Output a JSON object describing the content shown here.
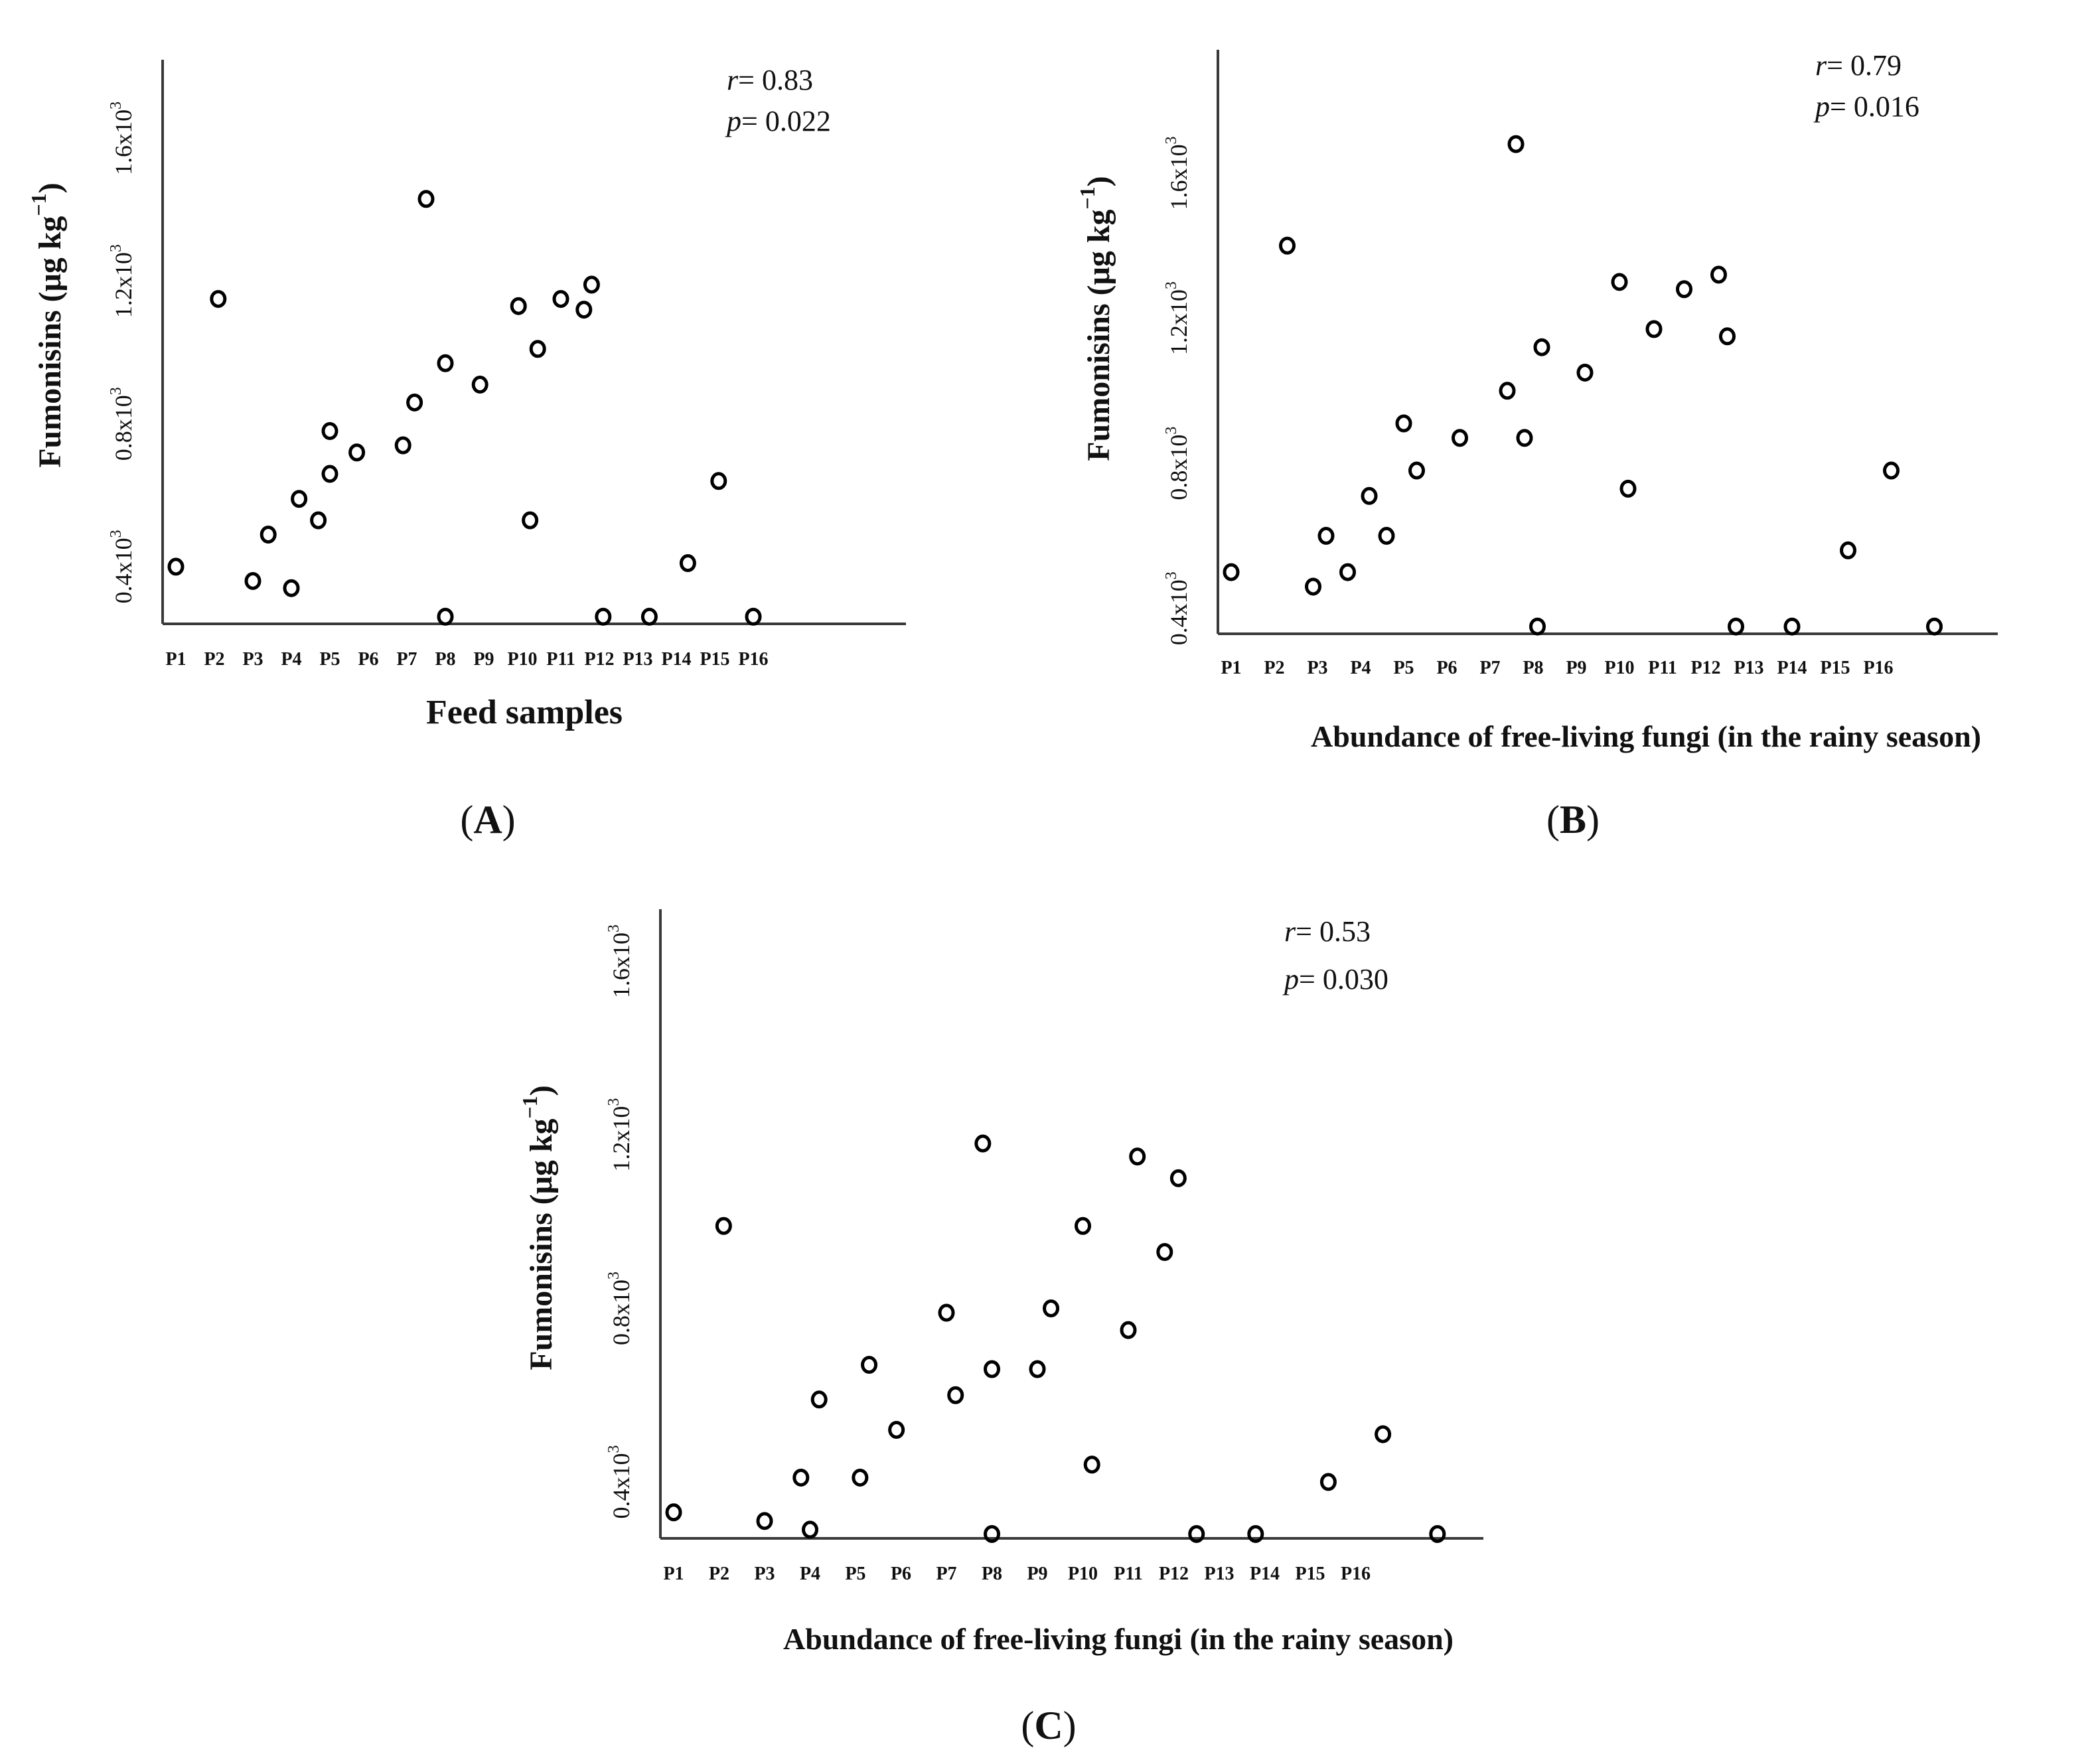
{
  "colors": {
    "ink": "#111111",
    "axis": "#3a3a3a",
    "marker": "#000000",
    "background": "#ffffff"
  },
  "chart_data": [
    {
      "type": "scatter",
      "panel_label": "A",
      "title": "",
      "xlabel": "Feed samples",
      "ylabel_main": "Fumonisins (μg kg",
      "ylabel_sup": "−1",
      "ylabel_close": ")",
      "categories": [
        "P1",
        "P2",
        "P3",
        "P4",
        "P5",
        "P6",
        "P7",
        "P8",
        "P9",
        "P10",
        "P11",
        "P12",
        "P13",
        "P14",
        "P15",
        "P16"
      ],
      "yticks": [
        {
          "base": "0.4x10",
          "exp": "3",
          "value": 0.4
        },
        {
          "base": "0.8x10",
          "exp": "3",
          "value": 0.8
        },
        {
          "base": "1.2x10",
          "exp": "3",
          "value": 1.2
        },
        {
          "base": "1.6x10",
          "exp": "3",
          "value": 1.6
        }
      ],
      "ylim": [
        0.24,
        1.82
      ],
      "y_units": "x10^3 μg kg^-1",
      "stats": {
        "r_symbol": "r",
        "r_value": "= 0.83",
        "p_symbol": "p",
        "p_value": "= 0.022"
      },
      "points": [
        {
          "x": 1.0,
          "y": 0.4
        },
        {
          "x": 2.1,
          "y": 1.15
        },
        {
          "x": 3.0,
          "y": 0.36
        },
        {
          "x": 3.4,
          "y": 0.49
        },
        {
          "x": 4.0,
          "y": 0.34
        },
        {
          "x": 4.2,
          "y": 0.59
        },
        {
          "x": 4.7,
          "y": 0.53
        },
        {
          "x": 5.0,
          "y": 0.66
        },
        {
          "x": 5.0,
          "y": 0.78
        },
        {
          "x": 5.7,
          "y": 0.72
        },
        {
          "x": 6.9,
          "y": 0.74
        },
        {
          "x": 7.2,
          "y": 0.86
        },
        {
          "x": 7.5,
          "y": 1.43
        },
        {
          "x": 8.0,
          "y": 0.26
        },
        {
          "x": 8.0,
          "y": 0.97
        },
        {
          "x": 8.9,
          "y": 0.91
        },
        {
          "x": 9.9,
          "y": 1.13
        },
        {
          "x": 10.2,
          "y": 0.53
        },
        {
          "x": 10.4,
          "y": 1.01
        },
        {
          "x": 11.0,
          "y": 1.15
        },
        {
          "x": 11.6,
          "y": 1.12
        },
        {
          "x": 11.8,
          "y": 1.19
        },
        {
          "x": 12.1,
          "y": 0.26
        },
        {
          "x": 13.3,
          "y": 0.26
        },
        {
          "x": 14.3,
          "y": 0.41
        },
        {
          "x": 15.1,
          "y": 0.64
        },
        {
          "x": 16.0,
          "y": 0.26
        }
      ]
    },
    {
      "type": "scatter",
      "panel_label": "B",
      "title": "",
      "xlabel": "Abundance of free-living fungi (in the rainy season)",
      "ylabel_main": "Fumonisins (μg kg",
      "ylabel_sup": "−1",
      "ylabel_close": ")",
      "categories": [
        "P1",
        "P2",
        "P3",
        "P4",
        "P5",
        "P6",
        "P7",
        "P8",
        "P9",
        "P10",
        "P11",
        "P12",
        "P13",
        "P14",
        "P15",
        "P16"
      ],
      "yticks": [
        {
          "base": "0.4x10",
          "exp": "3",
          "value": 0.4
        },
        {
          "base": "0.8x10",
          "exp": "3",
          "value": 0.8
        },
        {
          "base": "1.2x10",
          "exp": "3",
          "value": 1.2
        },
        {
          "base": "1.6x10",
          "exp": "3",
          "value": 1.6
        }
      ],
      "ylim": [
        0.33,
        1.94
      ],
      "y_units": "x10^3 μg kg^-1",
      "stats": {
        "r_symbol": "r",
        "r_value": "= 0.79",
        "p_symbol": "p",
        "p_value": "= 0.016"
      },
      "points": [
        {
          "x": 1.0,
          "y": 0.5
        },
        {
          "x": 2.3,
          "y": 1.4
        },
        {
          "x": 2.9,
          "y": 0.46
        },
        {
          "x": 3.2,
          "y": 0.6
        },
        {
          "x": 3.7,
          "y": 0.5
        },
        {
          "x": 4.2,
          "y": 0.71
        },
        {
          "x": 4.6,
          "y": 0.6
        },
        {
          "x": 5.0,
          "y": 0.91
        },
        {
          "x": 5.3,
          "y": 0.78
        },
        {
          "x": 6.3,
          "y": 0.87
        },
        {
          "x": 7.4,
          "y": 1.0
        },
        {
          "x": 7.6,
          "y": 1.68
        },
        {
          "x": 7.8,
          "y": 0.87
        },
        {
          "x": 8.1,
          "y": 0.35
        },
        {
          "x": 8.2,
          "y": 1.12
        },
        {
          "x": 9.2,
          "y": 1.05
        },
        {
          "x": 10.0,
          "y": 1.3
        },
        {
          "x": 10.2,
          "y": 0.73
        },
        {
          "x": 10.8,
          "y": 1.17
        },
        {
          "x": 11.5,
          "y": 1.28
        },
        {
          "x": 12.3,
          "y": 1.32
        },
        {
          "x": 12.5,
          "y": 1.15
        },
        {
          "x": 12.7,
          "y": 0.35
        },
        {
          "x": 14.0,
          "y": 0.35
        },
        {
          "x": 15.3,
          "y": 0.56
        },
        {
          "x": 16.3,
          "y": 0.78
        },
        {
          "x": 17.3,
          "y": 0.35
        }
      ]
    },
    {
      "type": "scatter",
      "panel_label": "C",
      "title": "",
      "xlabel": "Abundance of free-living fungi (in the rainy season)",
      "ylabel_main": "Fumonisins (μg kg",
      "ylabel_sup": "−1",
      "ylabel_close": ")",
      "categories": [
        "P1",
        "P2",
        "P3",
        "P4",
        "P5",
        "P6",
        "P7",
        "P8",
        "P9",
        "P10",
        "P11",
        "P12",
        "P13",
        "P14",
        "P15",
        "P16"
      ],
      "yticks": [
        {
          "base": "0.4x10",
          "exp": "3",
          "value": 0.4
        },
        {
          "base": "0.8x10",
          "exp": "3",
          "value": 0.8
        },
        {
          "base": "1.2x10",
          "exp": "3",
          "value": 1.2
        },
        {
          "base": "1.6x10",
          "exp": "3",
          "value": 1.6
        }
      ],
      "ylim": [
        0.27,
        1.72
      ],
      "y_units": "x10^3 μg kg^-1",
      "stats": {
        "r_symbol": "r",
        "r_value": "= 0.53",
        "p_symbol": "p",
        "p_value": "= 0.030"
      },
      "points": [
        {
          "x": 1.0,
          "y": 0.33
        },
        {
          "x": 2.1,
          "y": 0.99
        },
        {
          "x": 3.0,
          "y": 0.31
        },
        {
          "x": 3.8,
          "y": 0.41
        },
        {
          "x": 4.0,
          "y": 0.29
        },
        {
          "x": 4.2,
          "y": 0.59
        },
        {
          "x": 5.1,
          "y": 0.41
        },
        {
          "x": 5.3,
          "y": 0.67
        },
        {
          "x": 5.9,
          "y": 0.52
        },
        {
          "x": 7.0,
          "y": 0.79
        },
        {
          "x": 7.2,
          "y": 0.6
        },
        {
          "x": 7.8,
          "y": 1.18
        },
        {
          "x": 8.0,
          "y": 0.28
        },
        {
          "x": 8.0,
          "y": 0.66
        },
        {
          "x": 9.0,
          "y": 0.66
        },
        {
          "x": 9.3,
          "y": 0.8
        },
        {
          "x": 10.0,
          "y": 0.99
        },
        {
          "x": 10.2,
          "y": 0.44
        },
        {
          "x": 11.0,
          "y": 0.75
        },
        {
          "x": 11.2,
          "y": 1.15
        },
        {
          "x": 11.8,
          "y": 0.93
        },
        {
          "x": 12.1,
          "y": 1.1
        },
        {
          "x": 12.5,
          "y": 0.28
        },
        {
          "x": 13.8,
          "y": 0.28
        },
        {
          "x": 15.4,
          "y": 0.4
        },
        {
          "x": 16.6,
          "y": 0.51
        },
        {
          "x": 17.8,
          "y": 0.28
        }
      ]
    }
  ]
}
